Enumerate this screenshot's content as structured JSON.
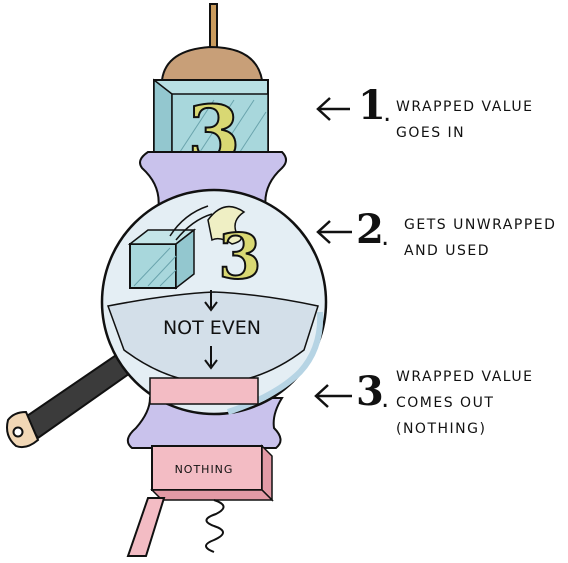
{
  "steps": [
    {
      "number": "1",
      "line1": "WRAPPED VALUE",
      "line2": "GOES IN",
      "line3": ""
    },
    {
      "number": "2",
      "line1": "GETS UNWRAPPED",
      "line2": "AND USED",
      "line3": ""
    },
    {
      "number": "3",
      "line1": "WRAPPED VALUE",
      "line2": "COMES OUT",
      "line3": "(NOTHING)"
    }
  ],
  "machine": {
    "input_value": "3",
    "unwrapped_value": "3",
    "function_label": "NOT EVEN",
    "output_label": "NOTHING"
  },
  "colors": {
    "cap": "#c89f78",
    "collar": "#c9c2ec",
    "globe": "#dfe9f1",
    "box": "#a8d7dc",
    "value": "#d9d873",
    "output": "#f3bcc4",
    "handle": "#3b3b3b",
    "outline": "#111111"
  }
}
